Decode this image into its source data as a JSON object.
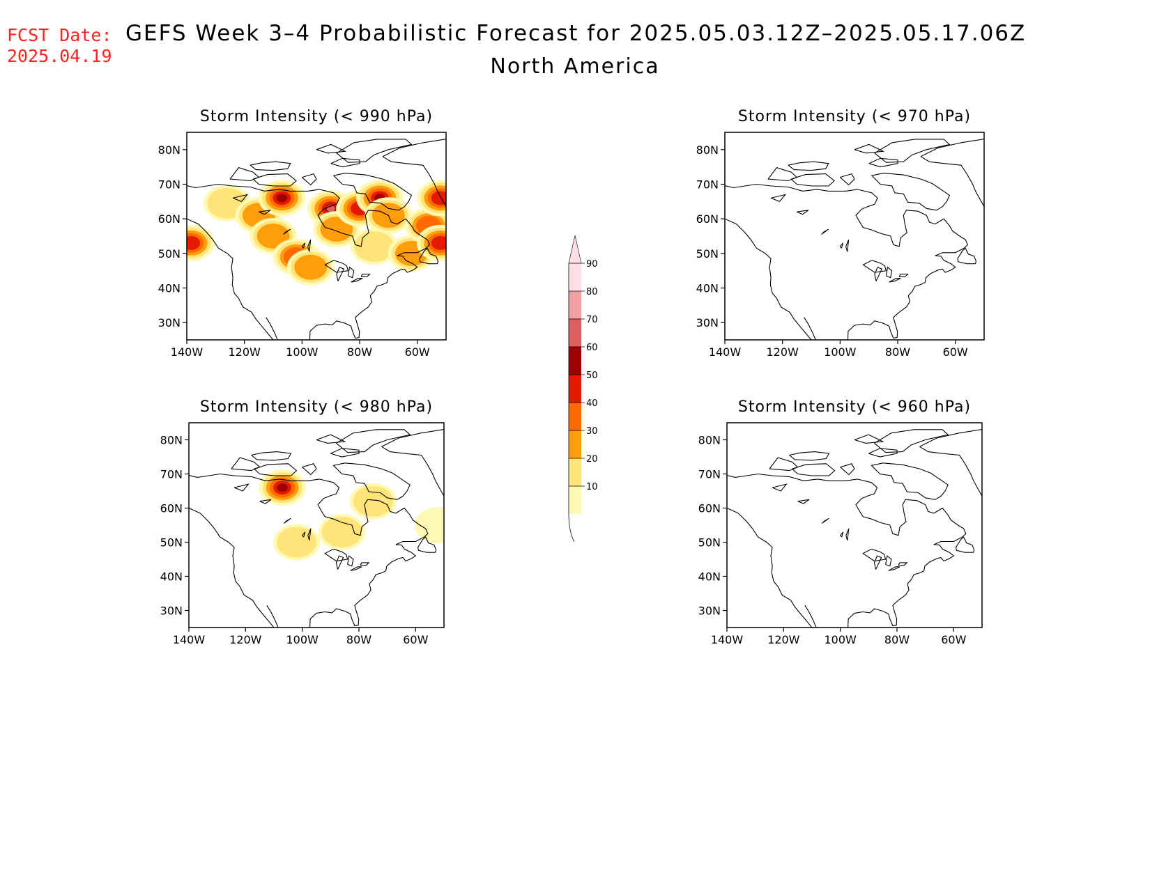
{
  "header": {
    "fcst_label": "FCST Date:",
    "fcst_date": "2025.04.19",
    "title": "GEFS Week 3–4 Probabilistic Forecast for 2025.05.03.12Z–2025.05.17.06Z",
    "region": "North America"
  },
  "colors": {
    "fcst_text": "#ff2020",
    "coast": "#000000",
    "levels": [
      "#fff9b4",
      "#ffe47a",
      "#ff9e0a",
      "#ff6a00",
      "#e21b00",
      "#a10000",
      "#dc6060",
      "#f0a0a0",
      "#fddfe4"
    ]
  },
  "panels": [
    {
      "id": "p990",
      "title": "Storm Intensity (< 990 hPa)",
      "lon_ticks": [
        "140W",
        "120W",
        "100W",
        "80W",
        "60W"
      ],
      "lat_ticks": [
        "80N",
        "70N",
        "60N",
        "50N",
        "40N",
        "30N"
      ],
      "features": [
        {
          "lon": -138.5,
          "lat": 53,
          "level": 4
        },
        {
          "lon": -126,
          "lat": 64.5,
          "level": 1
        },
        {
          "lon": -115,
          "lat": 61,
          "level": 2
        },
        {
          "lon": -107,
          "lat": 66,
          "level": 5
        },
        {
          "lon": -110,
          "lat": 55,
          "level": 2
        },
        {
          "lon": -102,
          "lat": 49,
          "level": 3
        },
        {
          "lon": -97,
          "lat": 46,
          "level": 2
        },
        {
          "lon": -90,
          "lat": 63,
          "level": 6
        },
        {
          "lon": -88,
          "lat": 57,
          "level": 2
        },
        {
          "lon": -80,
          "lat": 63,
          "level": 4
        },
        {
          "lon": -73,
          "lat": 66,
          "level": 5
        },
        {
          "lon": -70,
          "lat": 61,
          "level": 2
        },
        {
          "lon": -75,
          "lat": 52,
          "level": 1
        },
        {
          "lon": -62,
          "lat": 50,
          "level": 2
        },
        {
          "lon": -56,
          "lat": 58,
          "level": 3
        },
        {
          "lon": -52,
          "lat": 53,
          "level": 4
        },
        {
          "lon": -52,
          "lat": 66,
          "level": 4
        }
      ]
    },
    {
      "id": "p970",
      "title": "Storm Intensity (< 970 hPa)",
      "lon_ticks": [
        "140W",
        "120W",
        "100W",
        "80W",
        "60W"
      ],
      "lat_ticks": [
        "80N",
        "70N",
        "60N",
        "50N",
        "40N",
        "30N"
      ],
      "features": []
    },
    {
      "id": "p980",
      "title": "Storm Intensity (< 980 hPa)",
      "lon_ticks": [
        "140W",
        "120W",
        "100W",
        "80W",
        "60W"
      ],
      "lat_ticks": [
        "80N",
        "70N",
        "60N",
        "50N",
        "40N",
        "30N"
      ],
      "features": [
        {
          "lon": -107,
          "lat": 66,
          "level": 5
        },
        {
          "lon": -75,
          "lat": 62,
          "level": 1
        },
        {
          "lon": -102,
          "lat": 50,
          "level": 1
        },
        {
          "lon": -86,
          "lat": 53,
          "level": 1
        },
        {
          "lon": -52,
          "lat": 55,
          "level": 0
        }
      ]
    },
    {
      "id": "p960",
      "title": "Storm Intensity (< 960 hPa)",
      "lon_ticks": [
        "140W",
        "120W",
        "100W",
        "80W",
        "60W"
      ],
      "lat_ticks": [
        "80N",
        "70N",
        "60N",
        "50N",
        "40N",
        "30N"
      ],
      "features": []
    }
  ],
  "colorbar": {
    "labels": [
      "10",
      "20",
      "30",
      "40",
      "50",
      "60",
      "70",
      "80",
      "90"
    ]
  }
}
